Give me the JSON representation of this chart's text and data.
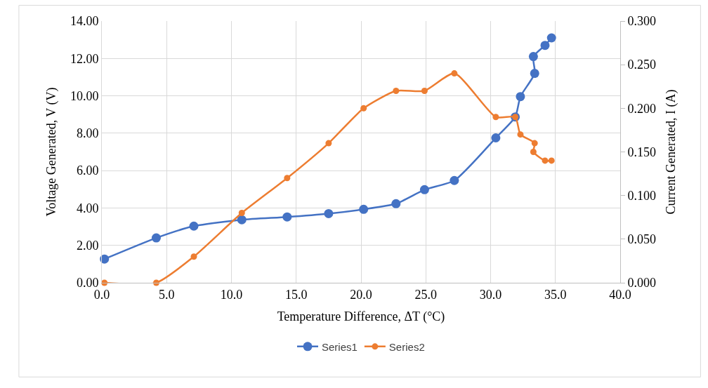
{
  "chart_data": {
    "type": "line",
    "xlabel": "Temperature Difference, ΔT (°C)",
    "ylabel": "Voltage Generated, V (V)",
    "y2label": "Current Generated, I (A)",
    "x": [
      0.2,
      4.2,
      7.1,
      10.8,
      14.3,
      17.5,
      20.2,
      22.7,
      24.9,
      27.2,
      30.4,
      31.9,
      32.3,
      33.4,
      33.3,
      34.2,
      34.7
    ],
    "series": [
      {
        "name": "Series1",
        "color": "#4472c4",
        "values": [
          1.27,
          2.4,
          3.03,
          3.37,
          3.52,
          3.7,
          3.93,
          4.23,
          4.98,
          5.47,
          7.75,
          8.87,
          9.96,
          11.2,
          12.1,
          12.7,
          13.1
        ]
      },
      {
        "name": "Series2",
        "color": "#ed7d31",
        "axis": "y2",
        "values": [
          0.0,
          0.0,
          0.03,
          0.08,
          0.12,
          0.16,
          0.2,
          0.22,
          0.22,
          0.24,
          0.19,
          0.19,
          0.17,
          0.16,
          0.15,
          0.14,
          0.14
        ]
      }
    ],
    "xlim": [
      0,
      40
    ],
    "xticks": [
      {
        "value": 0,
        "label": "0.0"
      },
      {
        "value": 5,
        "label": "5.0"
      },
      {
        "value": 10,
        "label": "10.0"
      },
      {
        "value": 15,
        "label": "15.0"
      },
      {
        "value": 20,
        "label": "20.0"
      },
      {
        "value": 25,
        "label": "25.0"
      },
      {
        "value": 30,
        "label": "30.0"
      },
      {
        "value": 35,
        "label": "35.0"
      },
      {
        "value": 40,
        "label": "40.0"
      }
    ],
    "ylim": [
      0,
      14
    ],
    "yticks": [
      {
        "value": 0,
        "label": "0.00"
      },
      {
        "value": 2,
        "label": "2.00"
      },
      {
        "value": 4,
        "label": "4.00"
      },
      {
        "value": 6,
        "label": "6.00"
      },
      {
        "value": 8,
        "label": "8.00"
      },
      {
        "value": 10,
        "label": "10.00"
      },
      {
        "value": 12,
        "label": "12.00"
      },
      {
        "value": 14,
        "label": "14.00"
      }
    ],
    "y2lim": [
      0,
      0.3
    ],
    "y2ticks": [
      {
        "value": 0,
        "label": "0.000"
      },
      {
        "value": 0.05,
        "label": "0.050"
      },
      {
        "value": 0.1,
        "label": "0.100"
      },
      {
        "value": 0.15,
        "label": "0.150"
      },
      {
        "value": 0.2,
        "label": "0.200"
      },
      {
        "value": 0.25,
        "label": "0.250"
      },
      {
        "value": 0.3,
        "label": "0.300"
      }
    ],
    "grid": true,
    "legend": "bottom",
    "marker": "circle",
    "line_style": "solid"
  }
}
